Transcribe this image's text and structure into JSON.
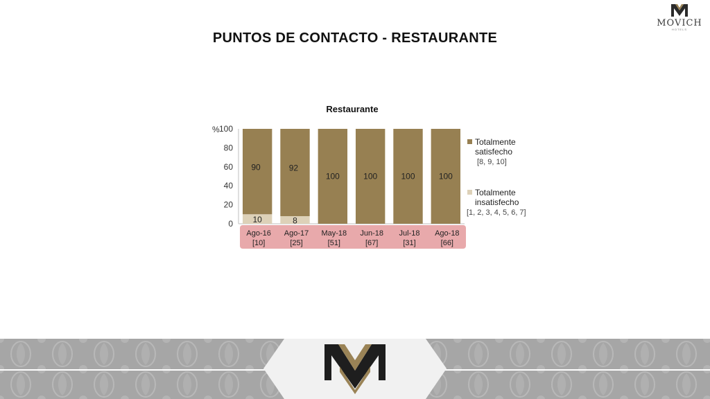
{
  "page": {
    "title": "PUNTOS DE CONTACTO - RESTAURANTE",
    "logo_text": "MOVICH",
    "logo_subtext": "HOTELS"
  },
  "colors": {
    "satisfied": "#978052",
    "unsatisfied": "#ddd1b8",
    "category_band": "#e8a9ab",
    "footer_grey": "#a6a6a6",
    "gold": "#9a8356",
    "dark": "#2b2b2b"
  },
  "chart_data": {
    "type": "bar",
    "stacked": true,
    "title": "Restaurante",
    "y_unit_label": "%",
    "ylim": [
      0,
      100
    ],
    "yticks": [
      "0",
      "20",
      "40",
      "60",
      "80",
      "100"
    ],
    "categories": [
      "Ago-16",
      "Ago-17",
      "May-18",
      "Jun-18",
      "Jul-18",
      "Ago-18"
    ],
    "category_counts": [
      "[10]",
      "[25]",
      "[51]",
      "[67]",
      "[31]",
      "[66]"
    ],
    "series": [
      {
        "name": "Totalmente insatisfecho",
        "range_label": "[1, 2, 3, 4, 5, 6, 7]",
        "values": [
          10,
          8,
          0,
          0,
          0,
          0
        ],
        "labels": [
          "10",
          "8",
          "",
          "",
          "",
          ""
        ]
      },
      {
        "name": "Totalmente satisfecho",
        "range_label": "[8, 9, 10]",
        "values": [
          90,
          92,
          100,
          100,
          100,
          100
        ],
        "labels": [
          "90",
          "92",
          "100",
          "100",
          "100",
          "100"
        ]
      }
    ],
    "legend_position": "right",
    "grid": false
  }
}
